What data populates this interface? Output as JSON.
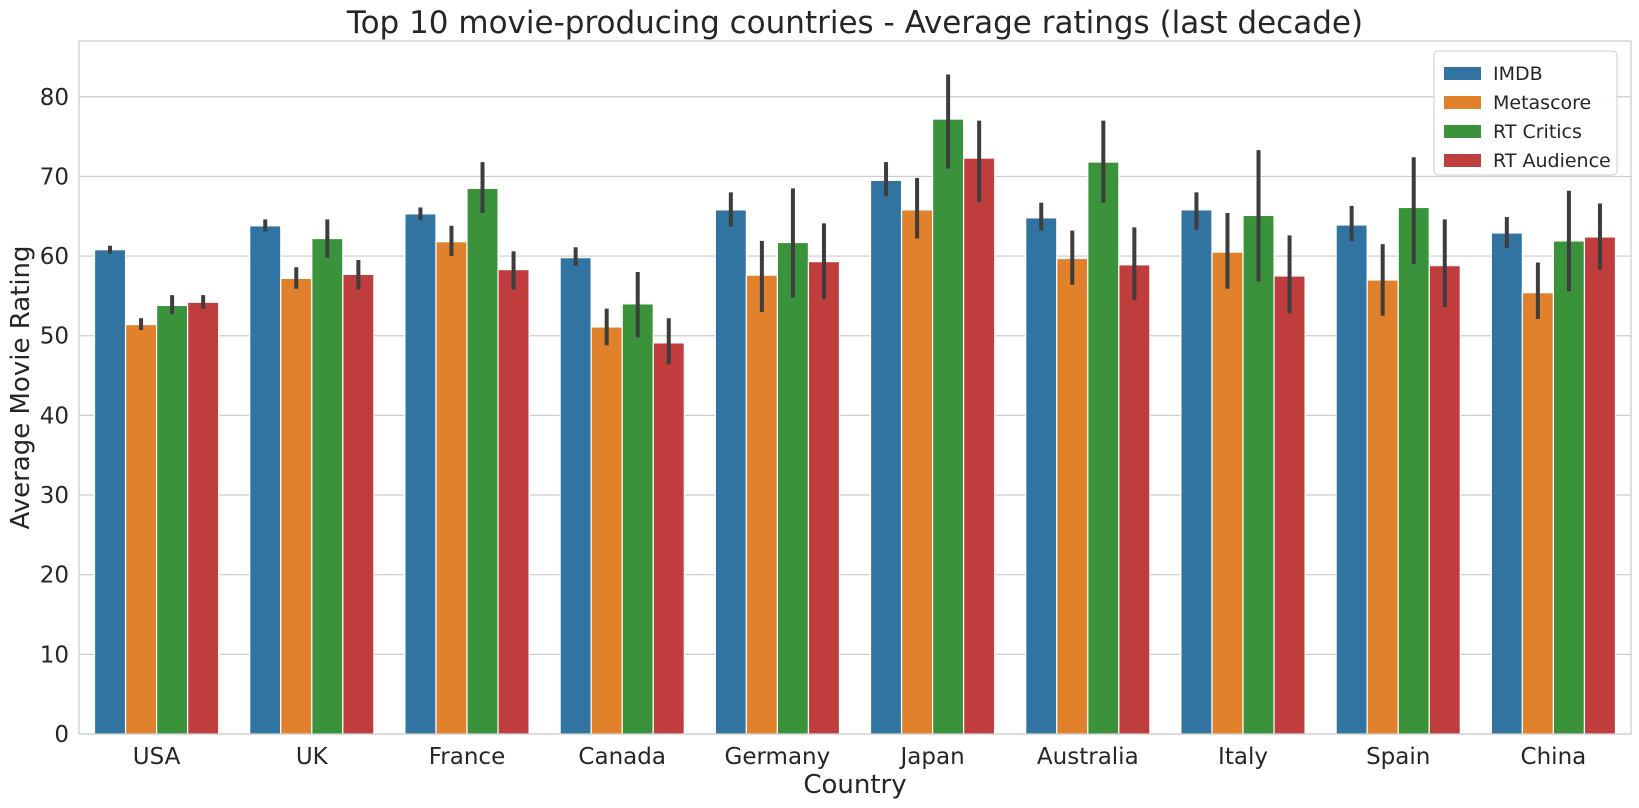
{
  "chart_data": {
    "type": "bar",
    "title": "Top 10 movie-producing countries - Average ratings (last decade)",
    "xlabel": "Country",
    "ylabel": "Average Movie Rating",
    "ylim": [
      0,
      87
    ],
    "yticks": [
      0,
      10,
      20,
      30,
      40,
      50,
      60,
      70,
      80
    ],
    "grid": "horizontal",
    "legend_position": "top-right",
    "categories": [
      "USA",
      "UK",
      "France",
      "Canada",
      "Germany",
      "Japan",
      "Australia",
      "Italy",
      "Spain",
      "China"
    ],
    "series": [
      {
        "name": "IMDB",
        "color": "#3274a1",
        "values": [
          60.8,
          63.8,
          65.3,
          59.8,
          65.8,
          69.5,
          64.8,
          65.8,
          63.9,
          62.9
        ],
        "error_low": [
          60.3,
          63.1,
          64.5,
          58.8,
          63.7,
          67.5,
          63.2,
          63.3,
          61.9,
          61.0
        ],
        "error_high": [
          61.3,
          64.6,
          66.1,
          61.1,
          68.0,
          71.8,
          66.7,
          68.0,
          66.3,
          64.9
        ]
      },
      {
        "name": "Metascore",
        "color": "#e1812c",
        "values": [
          51.4,
          57.2,
          61.8,
          51.1,
          57.6,
          65.8,
          59.7,
          60.5,
          57.0,
          55.4
        ],
        "error_low": [
          50.7,
          55.9,
          60.0,
          48.8,
          53.0,
          62.2,
          56.4,
          55.9,
          52.5,
          52.1
        ],
        "error_high": [
          52.2,
          58.6,
          63.8,
          53.4,
          61.9,
          69.8,
          63.2,
          65.4,
          61.5,
          59.2
        ]
      },
      {
        "name": "RT Critics",
        "color": "#3a923a",
        "values": [
          53.8,
          62.2,
          68.5,
          54.0,
          61.7,
          77.2,
          71.8,
          65.1,
          66.1,
          61.9
        ],
        "error_low": [
          52.7,
          59.8,
          65.4,
          49.8,
          54.8,
          71.0,
          66.7,
          56.8,
          59.0,
          55.6
        ],
        "error_high": [
          55.1,
          64.6,
          71.8,
          58.0,
          68.5,
          82.8,
          77.0,
          73.3,
          72.4,
          68.2
        ]
      },
      {
        "name": "RT Audience",
        "color": "#c03d3e",
        "values": [
          54.2,
          57.7,
          58.3,
          49.1,
          59.3,
          72.3,
          58.9,
          57.5,
          58.8,
          62.4
        ],
        "error_low": [
          53.4,
          55.8,
          55.8,
          46.4,
          54.6,
          66.8,
          54.5,
          52.8,
          53.6,
          58.3
        ],
        "error_high": [
          55.1,
          59.5,
          60.6,
          52.2,
          64.1,
          77.0,
          63.6,
          62.6,
          64.6,
          66.6
        ]
      }
    ]
  }
}
